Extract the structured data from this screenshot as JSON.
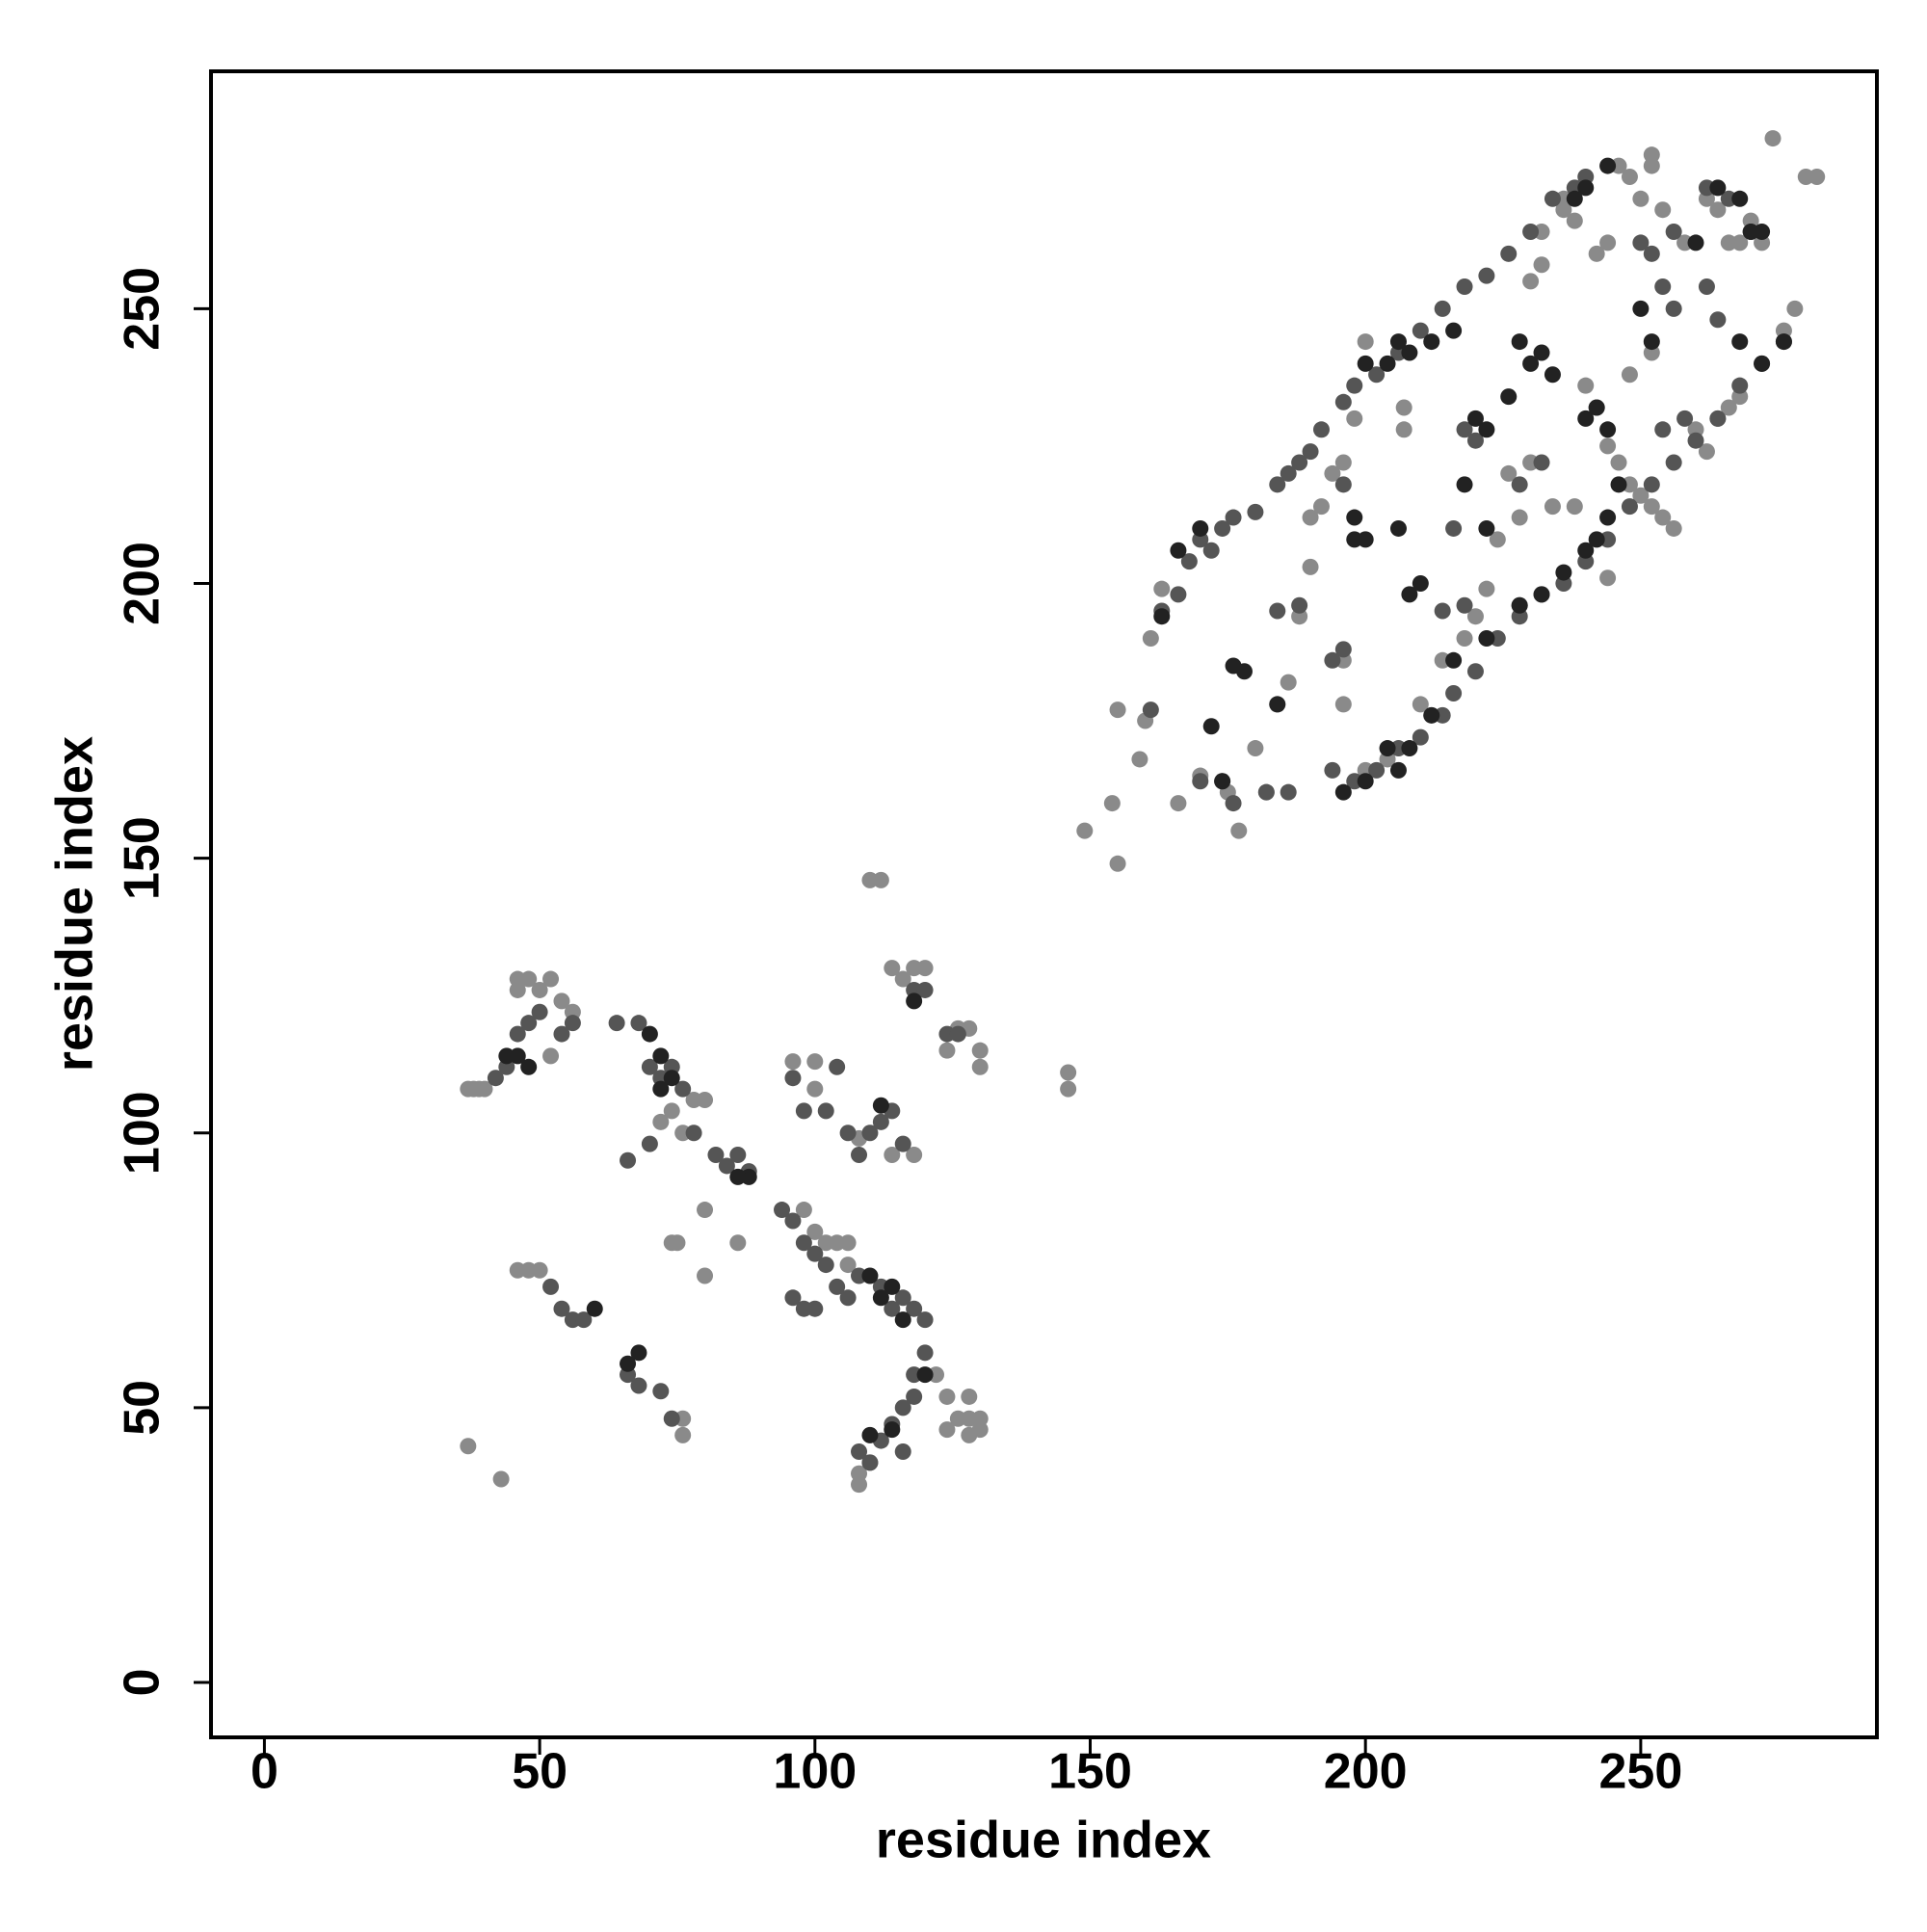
{
  "chart_data": {
    "type": "scatter",
    "xlabel": "residue index",
    "ylabel": "residue index",
    "xlim": [
      -9.7,
      292.9
    ],
    "ylim": [
      -10,
      293.2
    ],
    "xticks": [
      0,
      50,
      100,
      150,
      200,
      250
    ],
    "yticks": [
      0,
      50,
      100,
      150,
      200,
      250
    ],
    "grid": false,
    "series": [
      {
        "color": "#8a8a8a",
        "x": [
          37,
          38,
          39,
          40,
          37,
          43,
          46,
          46,
          48,
          50,
          52,
          54,
          56,
          46,
          48,
          50,
          52,
          74,
          75,
          80,
          80,
          86,
          72,
          74,
          76,
          78,
          80,
          96,
          100,
          100,
          110,
          112,
          114,
          116,
          118,
          120,
          124,
          130,
          126,
          128,
          130,
          126,
          128,
          130,
          124,
          128,
          130,
          108,
          108,
          110,
          98,
          100,
          102,
          104,
          106,
          106,
          146,
          146,
          122,
          124,
          76,
          76,
          108,
          114,
          118,
          128,
          149,
          155,
          154,
          155,
          159,
          160,
          161,
          163,
          166,
          170,
          175,
          177,
          180,
          182,
          184,
          186,
          188,
          190,
          190,
          192,
          194,
          196,
          198,
          200,
          196,
          196,
          200,
          204,
          207,
          207,
          210,
          212,
          214,
          218,
          220,
          222,
          224,
          228,
          230,
          232,
          232,
          236,
          236,
          238,
          242,
          244,
          246,
          248,
          250,
          252,
          252,
          254,
          258,
          262,
          264,
          266,
          268,
          270,
          272,
          274,
          276,
          278,
          280,
          282,
          242,
          244,
          246,
          248,
          250,
          252,
          254,
          256,
          260,
          262,
          264,
          266,
          268,
          244,
          238,
          240,
          248,
          252,
          226,
          230,
          234
        ],
        "y": [
          108,
          108,
          108,
          108,
          43,
          37,
          128,
          126,
          128,
          126,
          128,
          124,
          122,
          75,
          75,
          75,
          114,
          80,
          80,
          86,
          74,
          80,
          102,
          104,
          100,
          106,
          106,
          113,
          113,
          108,
          146,
          146,
          130,
          128,
          130,
          130,
          115,
          115,
          119,
          119,
          112,
          48,
          48,
          48,
          46,
          52,
          46,
          36,
          38,
          40,
          86,
          82,
          80,
          80,
          80,
          76,
          108,
          111,
          56,
          52,
          48,
          45,
          99,
          96,
          96,
          45,
          155,
          149,
          160,
          177,
          168,
          175,
          190,
          199,
          160,
          165,
          162,
          155,
          170,
          162,
          178,
          182,
          194,
          203,
          212,
          214,
          220,
          222,
          230,
          244,
          178,
          186,
          166,
          168,
          232,
          228,
          178,
          176,
          186,
          190,
          194,
          199,
          208,
          212,
          255,
          258,
          264,
          268,
          270,
          266,
          260,
          262,
          276,
          274,
          270,
          278,
          276,
          268,
          262,
          270,
          268,
          262,
          262,
          266,
          262,
          281,
          246,
          250,
          274,
          274,
          232,
          225,
          222,
          218,
          216,
          214,
          212,
          210,
          228,
          224,
          230,
          232,
          234,
          201,
          214,
          236,
          238,
          242,
          220,
          222,
          214
        ]
      },
      {
        "color": "#555555",
        "x": [
          42,
          44,
          46,
          48,
          50,
          54,
          56,
          52,
          54,
          56,
          58,
          66,
          68,
          72,
          74,
          64,
          68,
          70,
          72,
          74,
          76,
          70,
          66,
          78,
          82,
          84,
          88,
          86,
          94,
          96,
          98,
          100,
          102,
          96,
          98,
          100,
          104,
          106,
          108,
          112,
          114,
          116,
          118,
          120,
          120,
          118,
          118,
          116,
          114,
          112,
          116,
          108,
          110,
          96,
          98,
          102,
          104,
          106,
          108,
          110,
          112,
          114,
          116,
          118,
          120,
          124,
          126,
          161,
          163,
          166,
          168,
          170,
          172,
          174,
          176,
          180,
          184,
          186,
          188,
          190,
          192,
          196,
          198,
          202,
          206,
          210,
          214,
          218,
          222,
          226,
          230,
          234,
          238,
          240,
          184,
          188,
          194,
          196,
          194,
          198,
          202,
          206,
          210,
          214,
          216,
          220,
          224,
          228,
          232,
          236,
          240,
          244,
          248,
          252,
          256,
          260,
          264,
          268,
          272,
          276,
          170,
          174,
          176,
          182,
          186,
          218,
          220,
          228,
          232,
          254,
          256,
          254,
          258,
          262,
          264,
          228,
          214,
          218,
          250,
          252,
          256,
          262,
          266,
          270,
          216,
          196
        ],
        "y": [
          110,
          112,
          118,
          120,
          122,
          118,
          120,
          72,
          68,
          66,
          66,
          56,
          54,
          53,
          48,
          120,
          120,
          112,
          110,
          112,
          108,
          98,
          95,
          100,
          96,
          94,
          93,
          96,
          86,
          84,
          80,
          78,
          76,
          70,
          68,
          68,
          72,
          70,
          74,
          72,
          68,
          70,
          68,
          66,
          60,
          56,
          52,
          50,
          47,
          44,
          42,
          42,
          40,
          110,
          104,
          104,
          112,
          100,
          96,
          100,
          102,
          104,
          98,
          126,
          126,
          118,
          118,
          177,
          195,
          198,
          204,
          208,
          206,
          210,
          212,
          213,
          218,
          220,
          222,
          224,
          228,
          233,
          236,
          238,
          242,
          246,
          250,
          254,
          256,
          260,
          264,
          270,
          272,
          274,
          195,
          196,
          186,
          188,
          166,
          164,
          166,
          170,
          172,
          176,
          180,
          184,
          190,
          194,
          198,
          200,
          204,
          208,
          214,
          218,
          222,
          226,
          230,
          236,
          240,
          244,
          164,
          164,
          160,
          162,
          162,
          228,
          226,
          218,
          222,
          254,
          250,
          228,
          230,
          254,
          248,
          196,
          195,
          196,
          262,
          260,
          264,
          272,
          270,
          264,
          210,
          218
        ]
      },
      {
        "color": "#222222",
        "x": [
          44,
          46,
          48,
          60,
          68,
          66,
          70,
          72,
          74,
          110,
          112,
          114,
          116,
          110,
          114,
          120,
          88,
          72,
          118,
          86,
          112,
          163,
          166,
          170,
          172,
          174,
          178,
          184,
          196,
          200,
          204,
          206,
          208,
          212,
          210,
          208,
          198,
          200,
          198,
          200,
          204,
          206,
          208,
          212,
          216,
          220,
          222,
          226,
          228,
          230,
          232,
          234,
          228,
          232,
          236,
          240,
          242,
          244,
          246,
          240,
          242,
          244,
          250,
          252,
          238,
          240,
          244,
          260,
          264,
          268,
          270,
          272,
          272,
          276,
          268,
          206,
          176,
          218,
          222,
          216,
          222
        ],
        "y": [
          114,
          114,
          112,
          68,
          60,
          58,
          118,
          114,
          110,
          74,
          70,
          72,
          66,
          45,
          46,
          56,
          92,
          108,
          124,
          92,
          105,
          194,
          206,
          210,
          174,
          164,
          184,
          178,
          162,
          164,
          170,
          166,
          170,
          176,
          200,
          198,
          208,
          208,
          212,
          240,
          240,
          244,
          242,
          244,
          246,
          230,
          228,
          234,
          244,
          240,
          242,
          238,
          196,
          198,
          202,
          206,
          208,
          212,
          218,
          230,
          232,
          228,
          250,
          244,
          270,
          272,
          276,
          262,
          272,
          270,
          264,
          264,
          240,
          244,
          244,
          210,
          185,
          218,
          210,
          186,
          190
        ]
      }
    ]
  }
}
